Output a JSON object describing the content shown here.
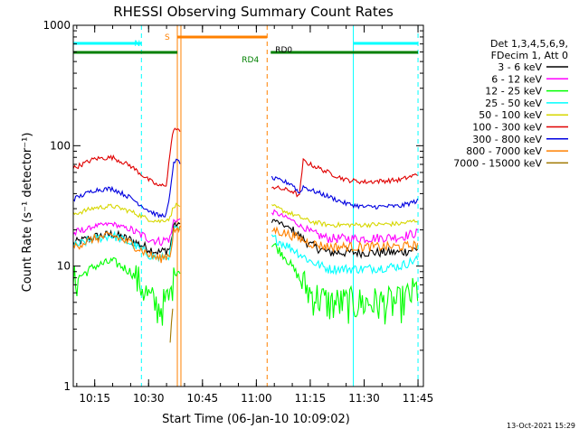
{
  "chart_data": {
    "type": "line",
    "title": "RHESSI Observing Summary Count Rates",
    "xlabel": "Start Time (06-Jan-10 10:09:02)",
    "ylabel": "Count Rate (s⁻¹ detector⁻¹)",
    "y_scale": "log",
    "ylim": [
      1,
      1000
    ],
    "xlim": [
      "10:09:02",
      "11:46:30"
    ],
    "x_ticks": [
      "10:15",
      "10:30",
      "10:45",
      "11:00",
      "11:15",
      "11:30",
      "11:45"
    ],
    "y_ticks": [
      "1",
      "10",
      "100",
      "1000"
    ],
    "legend_header": [
      "Det 1,3,4,5,6,9,",
      "FDecim 1, Att 0"
    ],
    "legend_position": "right",
    "series": [
      {
        "name": "3 - 6 keV",
        "color": "#000000",
        "points": [
          [
            "10:09",
            15.5
          ],
          [
            "10:15",
            17.5
          ],
          [
            "10:20",
            18.5
          ],
          [
            "10:25",
            16.5
          ],
          [
            "10:30",
            14.0
          ],
          [
            "10:33",
            13.0
          ],
          [
            "10:36",
            14.0
          ],
          [
            "10:37",
            22.0
          ],
          [
            "11:05",
            24.0
          ],
          [
            "11:10",
            20.0
          ],
          [
            "11:15",
            15.0
          ],
          [
            "11:20",
            13.0
          ],
          [
            "11:30",
            13.0
          ],
          [
            "11:40",
            13.0
          ],
          [
            "11:45",
            14.0
          ]
        ]
      },
      {
        "name": "6 - 12 keV",
        "color": "#ff00ff",
        "points": [
          [
            "10:09",
            18.5
          ],
          [
            "10:15",
            21.5
          ],
          [
            "10:20",
            22.5
          ],
          [
            "10:25",
            20.0
          ],
          [
            "10:30",
            17.0
          ],
          [
            "10:33",
            16.0
          ],
          [
            "10:36",
            17.0
          ],
          [
            "10:37",
            24.0
          ],
          [
            "11:05",
            28.0
          ],
          [
            "11:10",
            24.0
          ],
          [
            "11:15",
            19.0
          ],
          [
            "11:20",
            17.0
          ],
          [
            "11:30",
            17.0
          ],
          [
            "11:40",
            17.5
          ],
          [
            "11:45",
            19.0
          ]
        ]
      },
      {
        "name": "12 - 25 keV",
        "color": "#00ff00",
        "points": [
          [
            "10:09",
            7.5
          ],
          [
            "10:15",
            10.0
          ],
          [
            "10:20",
            11.0
          ],
          [
            "10:25",
            9.0
          ],
          [
            "10:28",
            7.0
          ],
          [
            "10:30",
            5.5
          ],
          [
            "10:33",
            4.5
          ],
          [
            "10:36",
            5.5
          ],
          [
            "10:37",
            9.0
          ],
          [
            "11:05",
            15.0
          ],
          [
            "11:08",
            12.0
          ],
          [
            "11:12",
            8.0
          ],
          [
            "11:15",
            6.0
          ],
          [
            "11:20",
            5.0
          ],
          [
            "11:30",
            5.0
          ],
          [
            "11:40",
            5.0
          ],
          [
            "11:45",
            6.5
          ]
        ]
      },
      {
        "name": "25 - 50 keV",
        "color": "#00ffff",
        "points": [
          [
            "10:09",
            14.5
          ],
          [
            "10:15",
            17.0
          ],
          [
            "10:20",
            18.0
          ],
          [
            "10:25",
            15.5
          ],
          [
            "10:30",
            12.5
          ],
          [
            "10:33",
            11.5
          ],
          [
            "10:36",
            12.5
          ],
          [
            "10:37",
            20.0
          ],
          [
            "11:05",
            17.0
          ],
          [
            "11:10",
            14.0
          ],
          [
            "11:15",
            11.0
          ],
          [
            "11:20",
            9.5
          ],
          [
            "11:30",
            9.5
          ],
          [
            "11:40",
            10.0
          ],
          [
            "11:45",
            11.5
          ]
        ]
      },
      {
        "name": "50 - 100 keV",
        "color": "#d7d700",
        "points": [
          [
            "10:09",
            27.0
          ],
          [
            "10:15",
            30.5
          ],
          [
            "10:20",
            31.5
          ],
          [
            "10:25",
            28.5
          ],
          [
            "10:30",
            24.5
          ],
          [
            "10:33",
            23.5
          ],
          [
            "10:36",
            25.0
          ],
          [
            "10:37",
            32.0
          ],
          [
            "11:05",
            31.0
          ],
          [
            "11:10",
            27.0
          ],
          [
            "11:15",
            23.5
          ],
          [
            "11:20",
            22.0
          ],
          [
            "11:30",
            22.0
          ],
          [
            "11:40",
            22.5
          ],
          [
            "11:45",
            24.0
          ]
        ]
      },
      {
        "name": "100 - 300 keV",
        "color": "#e00000",
        "points": [
          [
            "10:09",
            65.0
          ],
          [
            "10:15",
            78.0
          ],
          [
            "10:20",
            80.0
          ],
          [
            "10:25",
            68.0
          ],
          [
            "10:30",
            52.0
          ],
          [
            "10:33",
            46.0
          ],
          [
            "10:35",
            48.0
          ],
          [
            "10:36",
            90.0
          ],
          [
            "10:37",
            140.0
          ],
          [
            "11:05",
            45.0
          ],
          [
            "11:10",
            42.0
          ],
          [
            "11:12",
            38.0
          ],
          [
            "11:13",
            75.0
          ],
          [
            "11:15",
            70.0
          ],
          [
            "11:20",
            60.0
          ],
          [
            "11:25",
            52.0
          ],
          [
            "11:30",
            50.0
          ],
          [
            "11:40",
            52.0
          ],
          [
            "11:45",
            58.0
          ]
        ]
      },
      {
        "name": "300 - 800 keV",
        "color": "#0000e0",
        "points": [
          [
            "10:09",
            36.0
          ],
          [
            "10:15",
            43.0
          ],
          [
            "10:20",
            44.0
          ],
          [
            "10:25",
            37.0
          ],
          [
            "10:30",
            29.0
          ],
          [
            "10:33",
            26.0
          ],
          [
            "10:35",
            27.0
          ],
          [
            "10:36",
            40.0
          ],
          [
            "10:37",
            75.0
          ],
          [
            "11:05",
            53.0
          ],
          [
            "11:10",
            48.0
          ],
          [
            "11:12",
            40.0
          ],
          [
            "11:13",
            46.0
          ],
          [
            "11:15",
            43.0
          ],
          [
            "11:20",
            38.0
          ],
          [
            "11:25",
            33.0
          ],
          [
            "11:30",
            31.0
          ],
          [
            "11:40",
            31.5
          ],
          [
            "11:45",
            35.0
          ]
        ]
      },
      {
        "name": "800 - 7000 keV",
        "color": "#ff8000",
        "points": [
          [
            "10:09",
            14.5
          ],
          [
            "10:15",
            17.0
          ],
          [
            "10:20",
            18.0
          ],
          [
            "10:25",
            15.5
          ],
          [
            "10:30",
            12.5
          ],
          [
            "10:33",
            11.5
          ],
          [
            "10:36",
            12.5
          ],
          [
            "10:37",
            20.0
          ],
          [
            "11:05",
            20.0
          ],
          [
            "11:10",
            18.0
          ],
          [
            "11:15",
            15.5
          ],
          [
            "11:20",
            14.5
          ],
          [
            "11:30",
            14.5
          ],
          [
            "11:40",
            14.5
          ],
          [
            "11:45",
            15.0
          ]
        ]
      },
      {
        "name": "7000 - 15000 keV",
        "color": "#a07800",
        "points": [
          [
            "10:36",
            3.0
          ],
          [
            "10:37",
            3.5
          ]
        ]
      }
    ],
    "state_bars": [
      {
        "label": "N",
        "color": "#00ffff",
        "segments": [
          [
            "10:09",
            "10:28"
          ],
          [
            "11:27",
            "11:45"
          ]
        ],
        "level": 1
      },
      {
        "label": "S",
        "color": "#ff8000",
        "segments": [
          [
            "10:38",
            "11:03"
          ]
        ],
        "level": 2
      },
      {
        "label": "RD0",
        "color": "#008000",
        "segments": [
          [
            "11:04",
            "11:13"
          ]
        ],
        "level": 3
      },
      {
        "label": "RD4",
        "color": "#008000",
        "segments": [
          [
            "10:09",
            "10:38"
          ],
          [
            "11:13",
            "11:45"
          ]
        ],
        "level": 4
      }
    ],
    "vertical_lines": [
      {
        "time": "10:28",
        "color": "#00ffff",
        "style": "dashed"
      },
      {
        "time": "10:38",
        "color": "#ff8000",
        "style": "solid"
      },
      {
        "time": "10:39",
        "color": "#ff8000",
        "style": "solid"
      },
      {
        "time": "11:03",
        "color": "#ff8000",
        "style": "dashed"
      },
      {
        "time": "11:27",
        "color": "#00ffff",
        "style": "solid"
      },
      {
        "time": "11:45",
        "color": "#00ffff",
        "style": "dashed"
      }
    ],
    "gap": [
      "10:39",
      "11:04"
    ],
    "grid": false
  },
  "footer": {
    "timestamp": "13-Oct-2021 15:29"
  }
}
